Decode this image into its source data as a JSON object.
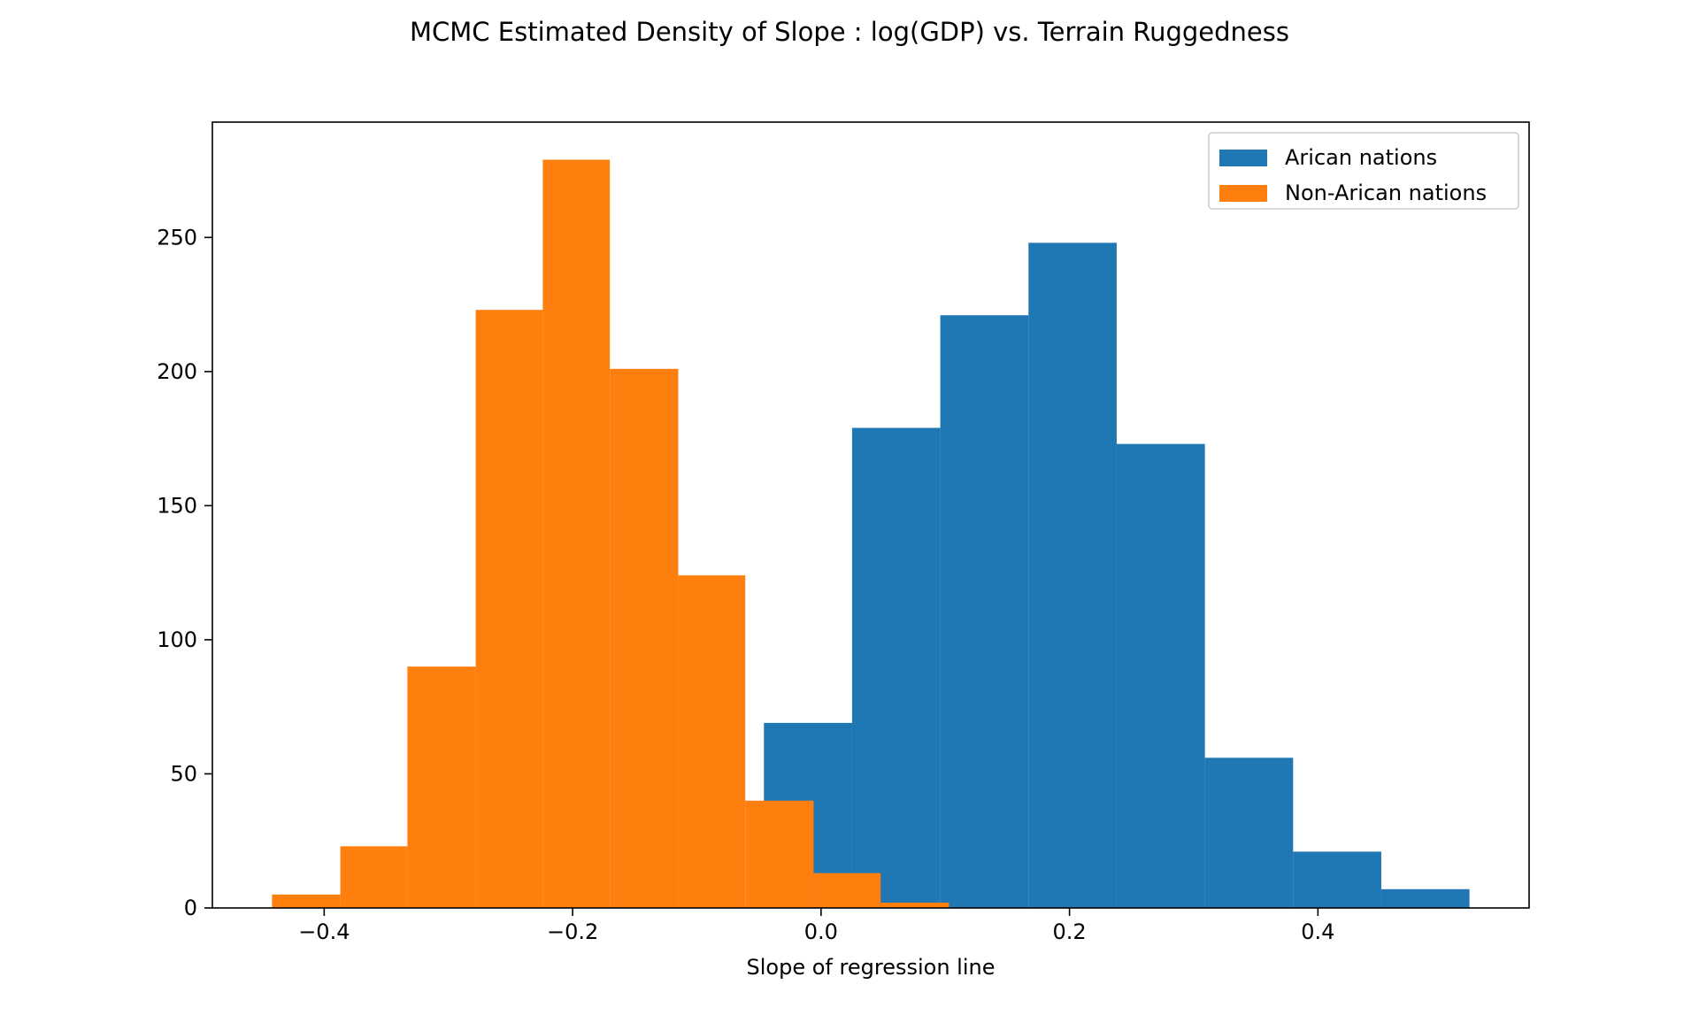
{
  "chart_data": {
    "type": "bar",
    "subtype": "histogram",
    "title": "MCMC Estimated Density of Slope : log(GDP) vs. Terrain Ruggedness",
    "xlabel": "Slope of regression line",
    "ylabel": "",
    "xlim": [
      -0.49,
      0.57
    ],
    "ylim": [
      0,
      293
    ],
    "xticks": [
      -0.4,
      -0.2,
      0.0,
      0.2,
      0.4
    ],
    "xtick_labels": [
      "−0.4",
      "−0.2",
      "0.0",
      "0.2",
      "0.4"
    ],
    "yticks": [
      0,
      50,
      100,
      150,
      200,
      250
    ],
    "ytick_labels": [
      "0",
      "50",
      "100",
      "150",
      "200",
      "250"
    ],
    "grid": false,
    "legend_position": "top-right",
    "series": [
      {
        "name": "Arican nations",
        "color": "#1f77b4",
        "bin_edges": [
          -0.046,
          0.025,
          0.096,
          0.167,
          0.238,
          0.309,
          0.38,
          0.451,
          0.522
        ],
        "counts": [
          69,
          179,
          221,
          248,
          173,
          56,
          21,
          7
        ]
      },
      {
        "name": "Non-Arican nations",
        "color": "#ff7f0e",
        "bin_edges": [
          -0.442,
          -0.387,
          -0.333,
          -0.278,
          -0.224,
          -0.17,
          -0.115,
          -0.061,
          -0.006,
          0.048,
          0.103
        ],
        "counts": [
          5,
          23,
          90,
          223,
          279,
          201,
          124,
          40,
          13,
          2
        ]
      }
    ]
  }
}
